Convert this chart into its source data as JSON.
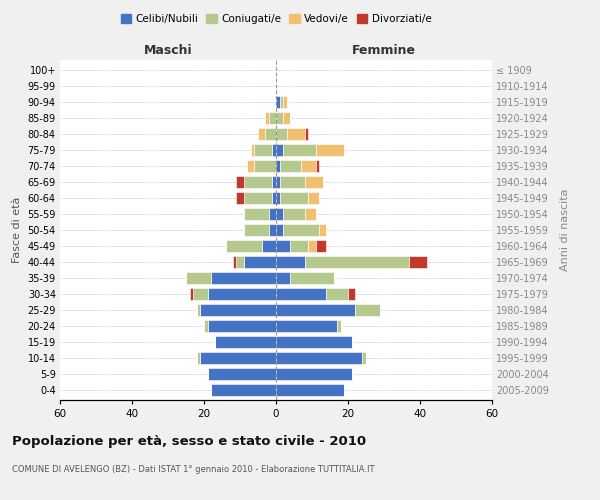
{
  "age_groups": [
    "0-4",
    "5-9",
    "10-14",
    "15-19",
    "20-24",
    "25-29",
    "30-34",
    "35-39",
    "40-44",
    "45-49",
    "50-54",
    "55-59",
    "60-64",
    "65-69",
    "70-74",
    "75-79",
    "80-84",
    "85-89",
    "90-94",
    "95-99",
    "100+"
  ],
  "birth_years": [
    "2005-2009",
    "2000-2004",
    "1995-1999",
    "1990-1994",
    "1985-1989",
    "1980-1984",
    "1975-1979",
    "1970-1974",
    "1965-1969",
    "1960-1964",
    "1955-1959",
    "1950-1954",
    "1945-1949",
    "1940-1944",
    "1935-1939",
    "1930-1934",
    "1925-1929",
    "1920-1924",
    "1915-1919",
    "1910-1914",
    "≤ 1909"
  ],
  "maschi": {
    "celibi": [
      18,
      19,
      21,
      17,
      19,
      21,
      19,
      18,
      9,
      4,
      2,
      2,
      1,
      1,
      0,
      1,
      0,
      0,
      0,
      0,
      0
    ],
    "coniugati": [
      0,
      0,
      1,
      0,
      1,
      1,
      4,
      7,
      2,
      10,
      7,
      7,
      8,
      8,
      6,
      5,
      3,
      2,
      0,
      0,
      0
    ],
    "vedovi": [
      0,
      0,
      0,
      0,
      0,
      0,
      0,
      0,
      0,
      0,
      0,
      0,
      0,
      0,
      2,
      1,
      2,
      1,
      0,
      0,
      0
    ],
    "divorziati": [
      0,
      0,
      0,
      0,
      0,
      0,
      1,
      0,
      1,
      0,
      0,
      0,
      2,
      2,
      0,
      0,
      0,
      0,
      0,
      0,
      0
    ]
  },
  "femmine": {
    "nubili": [
      19,
      21,
      24,
      21,
      17,
      22,
      14,
      4,
      8,
      4,
      2,
      2,
      1,
      1,
      1,
      2,
      0,
      0,
      1,
      0,
      0
    ],
    "coniugate": [
      0,
      0,
      1,
      0,
      1,
      7,
      6,
      12,
      29,
      5,
      10,
      6,
      8,
      7,
      6,
      9,
      3,
      2,
      1,
      0,
      0
    ],
    "vedove": [
      0,
      0,
      0,
      0,
      0,
      0,
      0,
      0,
      0,
      2,
      2,
      3,
      3,
      5,
      4,
      8,
      5,
      2,
      1,
      0,
      0
    ],
    "divorziate": [
      0,
      0,
      0,
      0,
      0,
      0,
      2,
      0,
      5,
      3,
      0,
      0,
      0,
      0,
      1,
      0,
      1,
      0,
      0,
      0,
      0
    ]
  },
  "colors": {
    "celibi": "#4472c4",
    "coniugati": "#b5c98e",
    "vedovi": "#f0c070",
    "divorziati": "#c0392b"
  },
  "xlim": 60,
  "title": "Popolazione per età, sesso e stato civile - 2010",
  "subtitle": "COMUNE DI AVELENGO (BZ) - Dati ISTAT 1° gennaio 2010 - Elaborazione TUTTITALIA.IT",
  "xlabel_left": "Maschi",
  "xlabel_right": "Femmine",
  "ylabel_left": "Fasce di età",
  "ylabel_right": "Anni di nascita",
  "legend_labels": [
    "Celibi/Nubili",
    "Coniugati/e",
    "Vedovi/e",
    "Divorziati/e"
  ],
  "bg_color": "#f0f0f0",
  "plot_bg_color": "#ffffff"
}
